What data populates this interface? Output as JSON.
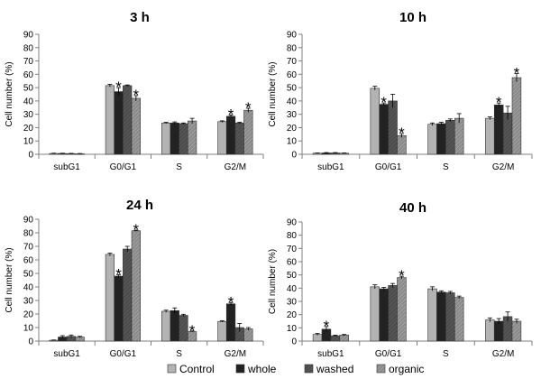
{
  "figure": {
    "series_names": [
      "Control",
      "whole",
      "washed",
      "organic"
    ],
    "series_colors": [
      "#b3b3b3",
      "#222222",
      "#555555",
      "#8a8a8a"
    ],
    "axis_color": "#808080",
    "significance_marker": "*"
  },
  "chart_data": [
    {
      "type": "bar",
      "title": "3 h",
      "xlabel": "",
      "ylabel": "Cell number (%)",
      "ylim": [
        0,
        90
      ],
      "yticks": [
        0,
        10,
        20,
        30,
        40,
        50,
        60,
        70,
        80,
        90
      ],
      "grid": false,
      "legend": "bottom-center",
      "categories": [
        "subG1",
        "G0/G1",
        "S",
        "G2/M"
      ],
      "series": [
        {
          "name": "Control",
          "values": [
            0.6,
            51.5,
            23.5,
            24.5
          ],
          "errors": [
            0.2,
            1.0,
            0.5,
            0.6
          ],
          "significant": [
            false,
            false,
            false,
            false
          ]
        },
        {
          "name": "whole",
          "values": [
            0.6,
            47,
            23.5,
            28.5
          ],
          "errors": [
            0.2,
            3.0,
            0.8,
            1.0
          ],
          "significant": [
            false,
            true,
            false,
            true
          ]
        },
        {
          "name": "washed",
          "values": [
            0.5,
            51.5,
            23,
            23.5
          ],
          "errors": [
            0.2,
            0.5,
            0.5,
            0.5
          ],
          "significant": [
            false,
            false,
            false,
            false
          ]
        },
        {
          "name": "organic",
          "values": [
            0.4,
            42,
            25,
            33
          ],
          "errors": [
            0.2,
            2.0,
            2.0,
            1.5
          ],
          "significant": [
            false,
            true,
            false,
            true
          ]
        }
      ]
    },
    {
      "type": "bar",
      "title": "10 h",
      "xlabel": "",
      "ylabel": "Cell number (%)",
      "ylim": [
        0,
        90
      ],
      "yticks": [
        0,
        10,
        20,
        30,
        40,
        50,
        60,
        70,
        80,
        90
      ],
      "grid": false,
      "legend": "bottom-center",
      "categories": [
        "subG1",
        "G0/G1",
        "S",
        "G2/M"
      ],
      "series": [
        {
          "name": "Control",
          "values": [
            0.8,
            49.5,
            22.5,
            27
          ],
          "errors": [
            0.2,
            1.5,
            1.0,
            1.0
          ],
          "significant": [
            false,
            false,
            false,
            false
          ]
        },
        {
          "name": "whole",
          "values": [
            1.0,
            37.5,
            23,
            37
          ],
          "errors": [
            0.3,
            1.0,
            1.0,
            1.5
          ],
          "significant": [
            false,
            true,
            false,
            true
          ]
        },
        {
          "name": "washed",
          "values": [
            1.0,
            40,
            25.5,
            31
          ],
          "errors": [
            0.3,
            5.0,
            1.0,
            5.0
          ],
          "significant": [
            false,
            false,
            false,
            false
          ]
        },
        {
          "name": "organic",
          "values": [
            0.8,
            14,
            27,
            57.5
          ],
          "errors": [
            0.2,
            1.5,
            3.5,
            3.0
          ],
          "significant": [
            false,
            true,
            false,
            true
          ]
        }
      ]
    },
    {
      "type": "bar",
      "title": "24 h",
      "xlabel": "",
      "ylabel": "Cell number (%)",
      "ylim": [
        0,
        90
      ],
      "yticks": [
        0,
        10,
        20,
        30,
        40,
        50,
        60,
        70,
        80,
        90
      ],
      "grid": false,
      "legend": "bottom-center",
      "categories": [
        "subG1",
        "G0/G1",
        "S",
        "G2/M"
      ],
      "series": [
        {
          "name": "Control",
          "values": [
            0.6,
            64,
            22,
            14.5
          ],
          "errors": [
            0.2,
            1.0,
            0.8,
            0.5
          ],
          "significant": [
            false,
            false,
            false,
            false
          ]
        },
        {
          "name": "whole",
          "values": [
            3.0,
            48,
            22.5,
            27.5
          ],
          "errors": [
            1.0,
            1.0,
            2.0,
            1.0
          ],
          "significant": [
            false,
            true,
            false,
            true
          ]
        },
        {
          "name": "washed",
          "values": [
            3.5,
            68,
            19,
            10
          ],
          "errors": [
            1.0,
            2.0,
            0.8,
            3.0
          ],
          "significant": [
            false,
            false,
            false,
            false
          ]
        },
        {
          "name": "organic",
          "values": [
            3.0,
            81.5,
            7,
            9
          ],
          "errors": [
            0.5,
            0.5,
            0.5,
            1.0
          ],
          "significant": [
            false,
            true,
            true,
            false
          ]
        }
      ]
    },
    {
      "type": "bar",
      "title": "40 h",
      "xlabel": "",
      "ylabel": "Cell number (%)",
      "ylim": [
        0,
        90
      ],
      "yticks": [
        0,
        10,
        20,
        30,
        40,
        50,
        60,
        70,
        80,
        90
      ],
      "grid": false,
      "legend": "bottom-center",
      "categories": [
        "subG1",
        "G0/G1",
        "S",
        "G2/M"
      ],
      "series": [
        {
          "name": "Control",
          "values": [
            5,
            41,
            39.5,
            16
          ],
          "errors": [
            0.8,
            1.5,
            1.5,
            1.5
          ],
          "significant": [
            false,
            false,
            false,
            false
          ]
        },
        {
          "name": "whole",
          "values": [
            9,
            39.5,
            37,
            15
          ],
          "errors": [
            2.0,
            1.0,
            1.0,
            2.0
          ],
          "significant": [
            true,
            false,
            false,
            false
          ]
        },
        {
          "name": "washed",
          "values": [
            4,
            42,
            36.5,
            18.5
          ],
          "errors": [
            0.5,
            1.5,
            1.0,
            3.5
          ],
          "significant": [
            false,
            false,
            false,
            false
          ]
        },
        {
          "name": "organic",
          "values": [
            4.5,
            48,
            33,
            15
          ],
          "errors": [
            0.5,
            1.0,
            1.0,
            1.5
          ],
          "significant": [
            false,
            true,
            false,
            false
          ]
        }
      ]
    }
  ]
}
